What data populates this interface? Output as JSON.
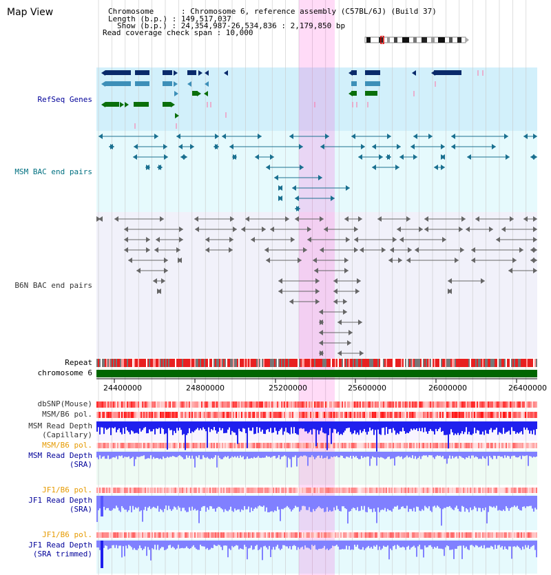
{
  "window": {
    "title": "Map View"
  },
  "header": {
    "chromosome_label": "Chromosome      : Chromosome 6, reference assembly (C57BL/6J) (Build 37)",
    "length_label": "Length (b.p.) : 149,517,037",
    "show_label": "Show (b.p.) : 24,354,987-26,534,836 : 2,179,850 bp",
    "coverage_label": "Read coverage check span : 10,000"
  },
  "tracks": {
    "refseq": "RefSeq Genes",
    "msm_bac": "MSM BAC end pairs",
    "b6n_bac": "B6N BAC end pairs",
    "repeat": "Repeat",
    "chromosome": "chromosome 6",
    "dbsnp": "dbSNP(Mouse)",
    "msm_b6_pol_1": "MSM/B6 pol.",
    "msm_depth_cap_1": "MSM Read Depth",
    "msm_depth_cap_2": "(Capillary)",
    "msm_b6_pol_2": "MSM/B6 pol.",
    "msm_depth_sra_1": "MSM Read Depth",
    "msm_depth_sra_2": "(SRA)",
    "jf1_b6_pol_1": "JF1/B6 pol.",
    "jf1_depth_sra_1": "JF1 Read Depth",
    "jf1_depth_sra_2": "(SRA)",
    "jf1_b6_pol_2": "JF1/B6 pol.",
    "jf1_depth_trim_1": "JF1 Read Depth",
    "jf1_depth_trim_2": "(SRA trimmed)"
  },
  "axis": {
    "ticks": [
      "24400000",
      "24800000",
      "25200000",
      "25600000",
      "26000000",
      "26400000"
    ]
  },
  "colors": {
    "refseq_bg": "#d2f0fb",
    "msm_bg": "#e6fafd",
    "b6n_bg": "#f1f1fa",
    "grid": "#c8c8c8",
    "highlight": "#ff00c8",
    "repeat": "#e82020",
    "chromosome": "#006600",
    "depth_dark": "#2020ee",
    "depth_light": "#8080ff",
    "label_blue": "#000099",
    "label_orange": "#e69a00",
    "label_teal": "#007080",
    "label_dark": "#333333"
  }
}
